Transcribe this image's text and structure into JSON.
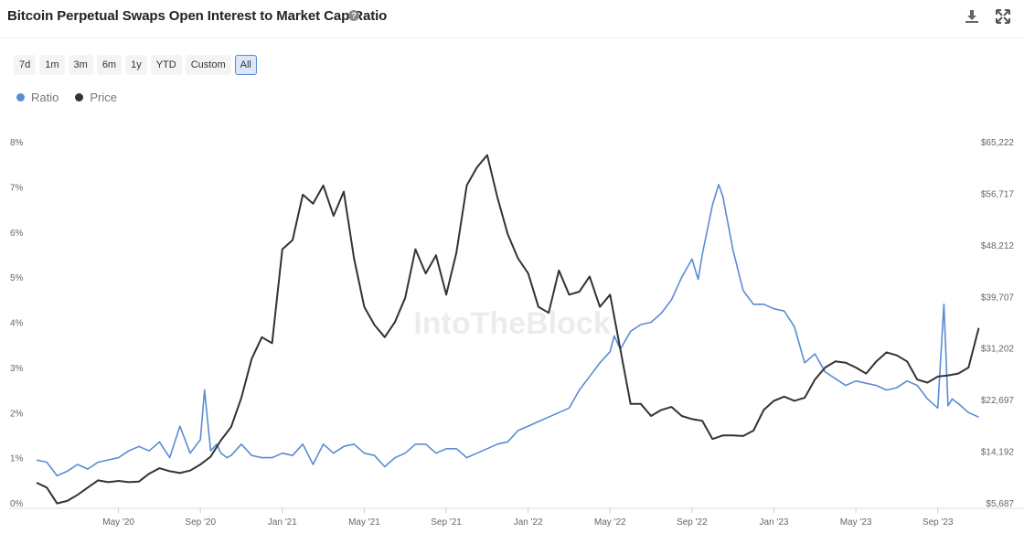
{
  "header": {
    "title": "Bitcoin Perpetual Swaps Open Interest to Market Cap Ratio",
    "help_icon": "question-circle-icon",
    "download_icon": "download-icon",
    "expand_icon": "expand-icon"
  },
  "ranges": [
    {
      "label": "7d",
      "active": false
    },
    {
      "label": "1m",
      "active": false
    },
    {
      "label": "3m",
      "active": false
    },
    {
      "label": "6m",
      "active": false
    },
    {
      "label": "1y",
      "active": false
    },
    {
      "label": "YTD",
      "active": false
    },
    {
      "label": "Custom",
      "active": false
    },
    {
      "label": "All",
      "active": true
    }
  ],
  "watermark": "IntoTheBlock",
  "chart_data": {
    "type": "line",
    "legend_position": "top-left",
    "grid": false,
    "x_ticks": [
      "May '20",
      "Sep '20",
      "Jan '21",
      "May '21",
      "Sep '21",
      "Jan '22",
      "May '22",
      "Sep '22",
      "Jan '23",
      "May '23",
      "Sep '23"
    ],
    "x_tick_months": [
      4,
      8,
      12,
      16,
      20,
      24,
      28,
      32,
      36,
      40,
      44
    ],
    "x_range_months": [
      0,
      46.2
    ],
    "y_left": {
      "ticks": [
        "0%",
        "1%",
        "2%",
        "3%",
        "4%",
        "5%",
        "6%",
        "7%",
        "8%"
      ],
      "range": [
        0,
        8
      ],
      "unit": "%"
    },
    "y_right": {
      "ticks": [
        "$5,687",
        "$14,192",
        "$22,697",
        "$31,202",
        "$39,707",
        "$48,212",
        "$56,717",
        "$65,222"
      ],
      "range": [
        5687,
        65222
      ]
    },
    "series": [
      {
        "name": "Ratio",
        "axis": "left",
        "color": "#5b8bd3",
        "months": [
          0,
          0.5,
          1,
          1.5,
          2,
          2.5,
          3,
          3.5,
          4,
          4.5,
          5,
          5.5,
          6,
          6.5,
          7,
          7.5,
          8,
          8.2,
          8.5,
          8.8,
          9,
          9.3,
          9.5,
          10,
          10.5,
          11,
          11.5,
          12,
          12.5,
          13,
          13.5,
          14,
          14.5,
          15,
          15.5,
          16,
          16.5,
          17,
          17.5,
          18,
          18.5,
          19,
          19.5,
          20,
          20.5,
          21,
          21.5,
          22,
          22.5,
          23,
          23.5,
          24,
          24.5,
          25,
          25.5,
          26,
          26.5,
          27,
          27.5,
          28,
          28.2,
          28.5,
          29,
          29.5,
          30,
          30.5,
          31,
          31.5,
          32,
          32.3,
          32.5,
          33,
          33.3,
          33.5,
          34,
          34.5,
          35,
          35.5,
          36,
          36.5,
          37,
          37.5,
          38,
          38.5,
          39,
          39.5,
          40,
          40.5,
          41,
          41.5,
          42,
          42.5,
          43,
          43.5,
          44,
          44.3,
          44.5,
          44.7,
          45,
          45.5,
          46
        ],
        "values": [
          0.95,
          0.9,
          0.6,
          0.7,
          0.85,
          0.75,
          0.9,
          0.95,
          1.0,
          1.15,
          1.25,
          1.15,
          1.35,
          1.0,
          1.7,
          1.1,
          1.4,
          2.5,
          1.15,
          1.3,
          1.1,
          1.0,
          1.05,
          1.3,
          1.05,
          1.0,
          1.0,
          1.1,
          1.05,
          1.3,
          0.85,
          1.3,
          1.1,
          1.25,
          1.3,
          1.1,
          1.05,
          0.8,
          1.0,
          1.1,
          1.3,
          1.3,
          1.1,
          1.2,
          1.2,
          1.0,
          1.1,
          1.2,
          1.3,
          1.35,
          1.6,
          1.7,
          1.8,
          1.9,
          2.0,
          2.1,
          2.5,
          2.8,
          3.1,
          3.35,
          3.7,
          3.4,
          3.8,
          3.95,
          4.0,
          4.2,
          4.5,
          5.0,
          5.4,
          4.95,
          5.5,
          6.6,
          7.05,
          6.8,
          5.6,
          4.7,
          4.4,
          4.4,
          4.3,
          4.25,
          3.9,
          3.1,
          3.3,
          2.9,
          2.75,
          2.6,
          2.7,
          2.65,
          2.6,
          2.5,
          2.55,
          2.7,
          2.6,
          2.3,
          2.1,
          4.4,
          2.15,
          2.3,
          2.2,
          2.0,
          1.9
        ]
      },
      {
        "name": "Price",
        "axis": "right",
        "color": "#333333",
        "months": [
          0,
          0.5,
          1,
          1.5,
          2,
          2.5,
          3,
          3.5,
          4,
          4.5,
          5,
          5.5,
          6,
          6.5,
          7,
          7.5,
          8,
          8.5,
          9,
          9.5,
          10,
          10.5,
          11,
          11.5,
          12,
          12.5,
          13,
          13.5,
          14,
          14.5,
          15,
          15.5,
          16,
          16.5,
          17,
          17.5,
          18,
          18.5,
          19,
          19.5,
          20,
          20.5,
          21,
          21.5,
          22,
          22.5,
          23,
          23.5,
          24,
          24.5,
          25,
          25.5,
          26,
          26.5,
          27,
          27.5,
          28,
          28.5,
          29,
          29.5,
          30,
          30.5,
          31,
          31.5,
          32,
          32.5,
          33,
          33.5,
          34,
          34.5,
          35,
          35.5,
          36,
          36.5,
          37,
          37.5,
          38,
          38.5,
          39,
          39.5,
          40,
          40.5,
          41,
          41.5,
          42,
          42.5,
          43,
          43.5,
          44,
          44.5,
          45,
          45.5,
          46
        ],
        "values": [
          9000,
          8200,
          5600,
          6000,
          7000,
          8200,
          9400,
          9100,
          9300,
          9100,
          9200,
          10500,
          11400,
          10900,
          10600,
          11000,
          12000,
          13300,
          16000,
          18200,
          23000,
          29400,
          33000,
          32000,
          47500,
          49000,
          56500,
          55000,
          58000,
          53000,
          57000,
          46000,
          38000,
          35000,
          33000,
          35500,
          39500,
          47500,
          43500,
          46500,
          40000,
          47000,
          58000,
          61000,
          63000,
          56000,
          50000,
          46000,
          43500,
          38000,
          37000,
          44000,
          40000,
          40500,
          43000,
          38000,
          40000,
          31000,
          22000,
          22000,
          20000,
          21000,
          21500,
          20000,
          19500,
          19200,
          16200,
          16800,
          16800,
          16700,
          17600,
          21000,
          22500,
          23200,
          22500,
          23000,
          26000,
          28000,
          29000,
          28800,
          28000,
          27000,
          29000,
          30500,
          30000,
          29000,
          26000,
          25500,
          26500,
          26700,
          27000,
          28000,
          34500
        ]
      }
    ]
  }
}
